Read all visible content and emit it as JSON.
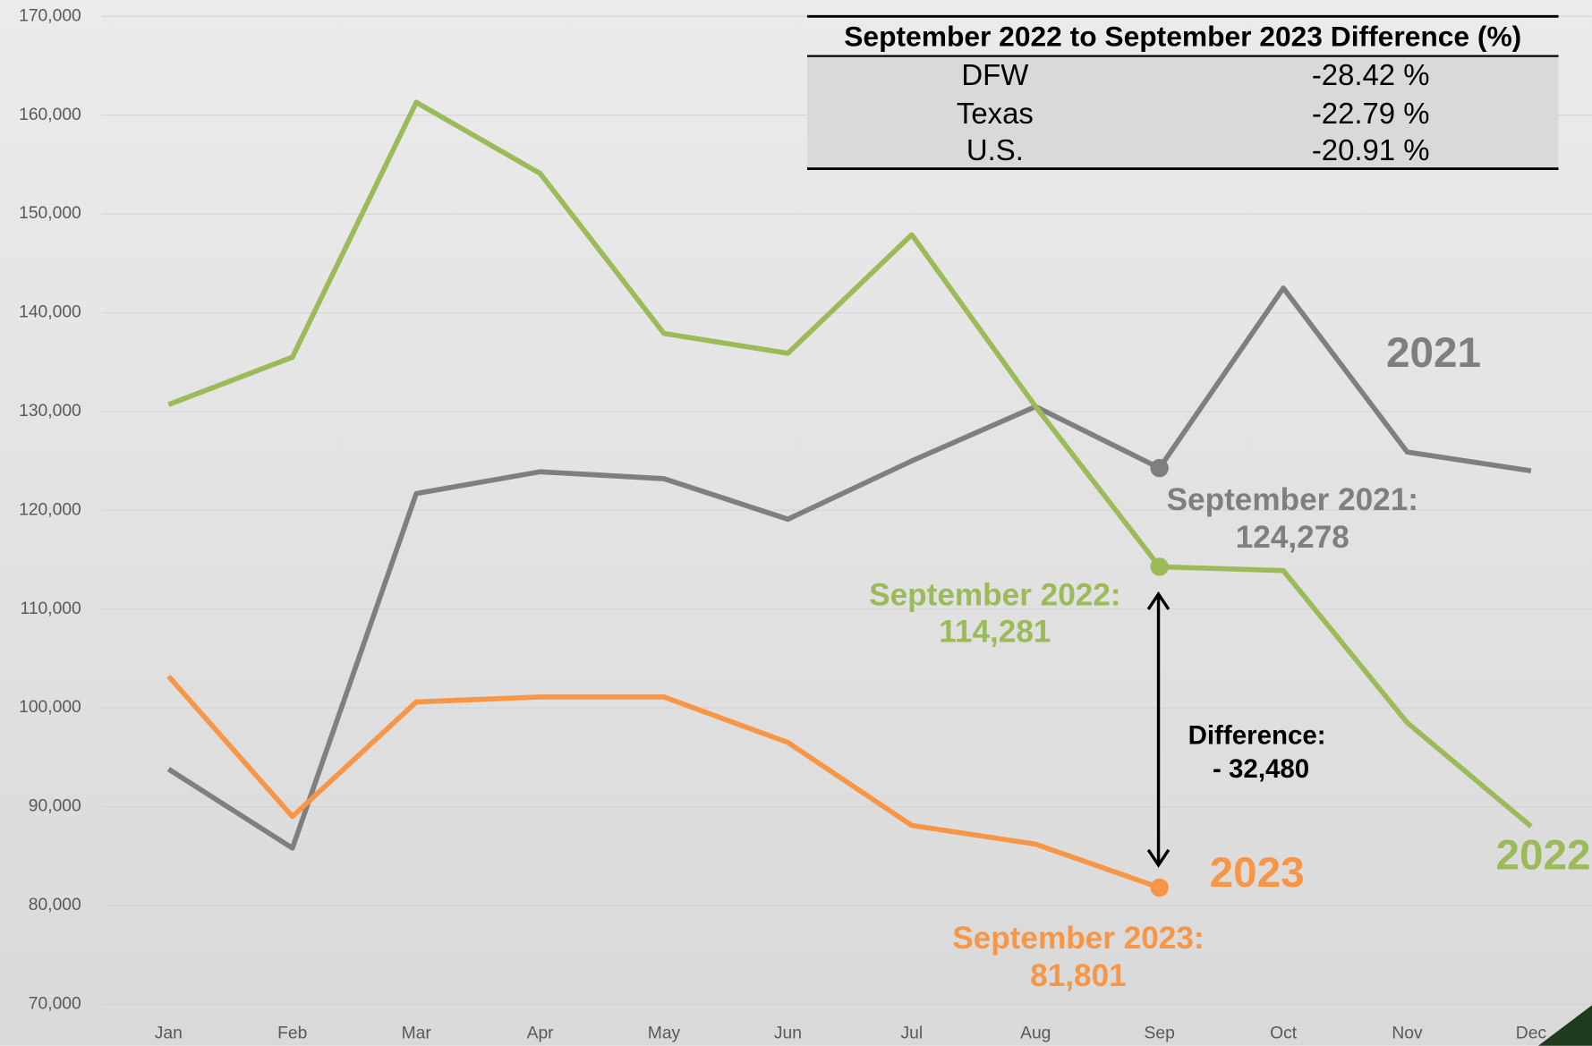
{
  "chart_data": {
    "type": "line",
    "categories": [
      "Jan",
      "Feb",
      "Mar",
      "Apr",
      "May",
      "Jun",
      "Jul",
      "Aug",
      "Sep",
      "Oct",
      "Nov",
      "Dec"
    ],
    "series": [
      {
        "name": "2021",
        "color": "#7f7f7f",
        "values": [
          93800,
          85800,
          121700,
          123900,
          123200,
          119100,
          125000,
          130500,
          124278,
          142500,
          125900,
          124000
        ],
        "value_labels": [
          null,
          null,
          null,
          null,
          null,
          null,
          null,
          null,
          "124,278",
          null,
          null,
          null
        ]
      },
      {
        "name": "2022",
        "color": "#9bbb59",
        "values": [
          130700,
          135500,
          161300,
          154100,
          137900,
          135900,
          147900,
          130500,
          114281,
          113900,
          98500,
          88000
        ],
        "value_labels": [
          null,
          null,
          null,
          null,
          null,
          null,
          null,
          null,
          "114,281",
          null,
          null,
          null
        ]
      },
      {
        "name": "2023",
        "color": "#f79646",
        "values": [
          103200,
          89000,
          100600,
          101100,
          101100,
          96500,
          88100,
          86200,
          81801,
          null,
          null,
          null
        ],
        "value_labels": [
          null,
          null,
          null,
          null,
          null,
          null,
          null,
          null,
          "81,801",
          null,
          null,
          null
        ]
      }
    ],
    "ylim": [
      70000,
      170000
    ],
    "yticks": [
      {
        "value": 70000,
        "label": "70,000"
      },
      {
        "value": 80000,
        "label": "80,000"
      },
      {
        "value": 90000,
        "label": "90,000"
      },
      {
        "value": 100000,
        "label": "100,000"
      },
      {
        "value": 110000,
        "label": "110,000"
      },
      {
        "value": 120000,
        "label": "120,000"
      },
      {
        "value": 130000,
        "label": "130,000"
      },
      {
        "value": 140000,
        "label": "140,000"
      },
      {
        "value": 150000,
        "label": "150,000"
      },
      {
        "value": 160000,
        "label": "160,000"
      },
      {
        "value": 170000,
        "label": "170,000"
      }
    ],
    "grid": true,
    "annotations": [
      "September 2021:",
      "September 2022:",
      "September 2023:",
      "Difference:",
      "- 32,480"
    ],
    "table": {
      "header": "September 2022 to September 2023 Difference (%)",
      "rows": [
        [
          "DFW",
          "-28.42 %"
        ],
        [
          "Texas",
          "-22.79 %"
        ],
        [
          "U.S.",
          "-20.91 %"
        ]
      ]
    }
  }
}
